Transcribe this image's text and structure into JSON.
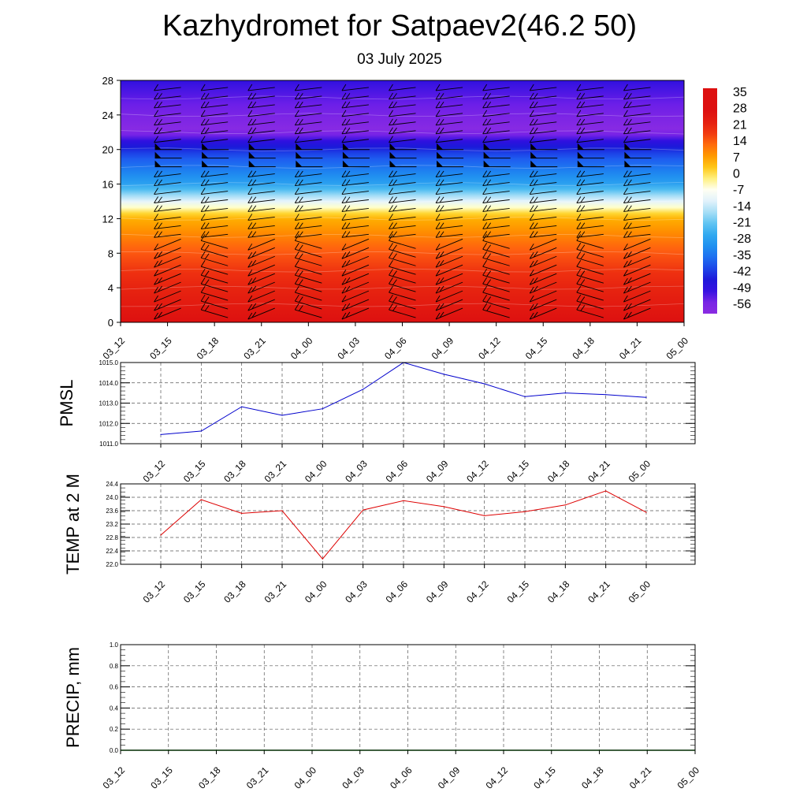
{
  "title": "Kazhydromet for Satpaev2(46.2 50)",
  "subtitle": "03 July 2025",
  "time_labels": [
    "03_12",
    "03_15",
    "03_18",
    "03_21",
    "04_00",
    "04_03",
    "04_06",
    "04_09",
    "04_12",
    "04_15",
    "04_18",
    "04_21",
    "05_00"
  ],
  "chart_data": [
    {
      "type": "heatmap",
      "name": "vertical-section",
      "y_ticks": [
        0,
        4,
        8,
        12,
        16,
        20,
        24,
        28
      ],
      "ylim": [
        0,
        28
      ],
      "x": [
        "03_12",
        "03_15",
        "03_18",
        "03_21",
        "04_00",
        "04_03",
        "04_06",
        "04_09",
        "04_12",
        "04_15",
        "04_18",
        "04_21",
        "05_00"
      ],
      "colorbar_labels": [
        35,
        28,
        21,
        14,
        7,
        0,
        -7,
        -14,
        -21,
        -28,
        -35,
        -42,
        -49,
        -56
      ],
      "temperature_profile": {
        "levels": [
          0,
          4,
          8,
          12,
          13,
          14,
          16,
          20,
          22,
          24,
          28
        ],
        "values": [
          30,
          25,
          18,
          8,
          0,
          -10,
          -28,
          -44,
          -60,
          -58,
          -52
        ]
      },
      "colors": {
        "hot": "#e01010",
        "warm": "#ff8c00",
        "neutral": "#ffff9a",
        "cool": "#20aaee",
        "cold": "#1a1ad8",
        "coldest": "#8a2be2"
      },
      "wind_barb_columns": [
        "03_15",
        "03_18",
        "03_21",
        "04_00",
        "04_03",
        "04_06",
        "04_09",
        "04_12",
        "04_15",
        "04_18",
        "04_21"
      ],
      "wind_barb_levels": [
        1,
        2,
        3,
        4,
        5,
        6,
        7,
        8,
        9,
        10,
        11,
        12,
        13,
        14,
        15,
        16,
        17,
        18,
        19,
        20,
        21,
        22,
        23,
        24,
        25,
        26,
        27
      ],
      "pennant_levels": [
        18,
        19,
        20
      ]
    },
    {
      "type": "line",
      "name": "pmsl",
      "ylabel": "PMSL",
      "ylim": [
        1011.0,
        1015.0
      ],
      "y_ticks": [
        "1011.0",
        "1012.0",
        "1013.0",
        "1014.0",
        "1015.0"
      ],
      "categories": [
        "03_12",
        "03_15",
        "03_18",
        "03_21",
        "04_00",
        "04_03",
        "04_06",
        "04_09",
        "04_12",
        "04_15",
        "04_18",
        "04_21",
        "05_00"
      ],
      "values": [
        1011.45,
        1011.62,
        1012.82,
        1012.4,
        1012.72,
        1013.68,
        1015.0,
        1014.42,
        1013.95,
        1013.32,
        1013.5,
        1013.42,
        1013.28
      ],
      "color": "#0000cc"
    },
    {
      "type": "line",
      "name": "temp2m",
      "ylabel": "TEMP at 2 M",
      "ylim": [
        22.0,
        24.4
      ],
      "y_ticks": [
        "22.0",
        "22.4",
        "22.8",
        "23.2",
        "23.6",
        "24.0",
        "24.4"
      ],
      "categories": [
        "03_12",
        "03_15",
        "03_18",
        "03_21",
        "04_00",
        "04_03",
        "04_06",
        "04_09",
        "04_12",
        "04_15",
        "04_18",
        "04_21",
        "05_00"
      ],
      "values": [
        22.87,
        23.93,
        23.52,
        23.6,
        22.16,
        23.62,
        23.9,
        23.72,
        23.45,
        23.57,
        23.77,
        24.19,
        23.55
      ],
      "color": "#dd0000"
    },
    {
      "type": "line",
      "name": "precip",
      "ylabel": "PRECIP, mm",
      "ylim": [
        0.0,
        1.0
      ],
      "y_ticks": [
        "0.0",
        "0.2",
        "0.4",
        "0.6",
        "0.8",
        "1.0"
      ],
      "categories": [
        "03_12",
        "03_15",
        "03_18",
        "03_21",
        "04_00",
        "04_03",
        "04_06",
        "04_09",
        "04_12",
        "04_15",
        "04_18",
        "04_21",
        "05_00"
      ],
      "values": [
        0,
        0,
        0,
        0,
        0,
        0,
        0,
        0,
        0,
        0,
        0,
        0,
        0
      ],
      "color": "#008000"
    }
  ]
}
